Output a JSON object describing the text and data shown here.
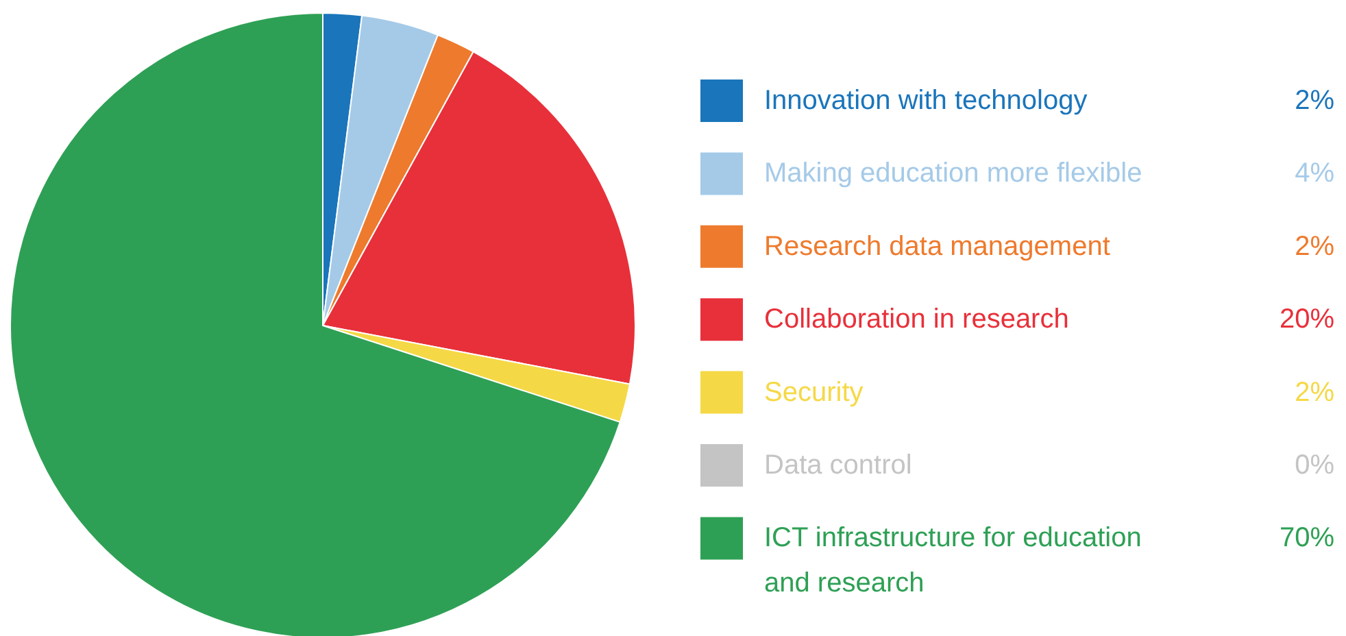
{
  "chart_data": {
    "type": "pie",
    "categories": [
      "Innovation with technology",
      "Making education more flexible",
      "Research data management",
      "Collaboration in research",
      "Security",
      "Data control",
      "ICT infrastructure for education and research"
    ],
    "values": [
      2,
      4,
      2,
      20,
      2,
      0,
      70
    ],
    "colors": [
      "#1a75bb",
      "#a5cae8",
      "#ee7a2d",
      "#e8303a",
      "#f5d846",
      "#c4c4c4",
      "#2ea055"
    ],
    "value_labels": [
      "2%",
      "4%",
      "2%",
      "20%",
      "2%",
      "0%",
      "70%"
    ],
    "legend": "right"
  }
}
